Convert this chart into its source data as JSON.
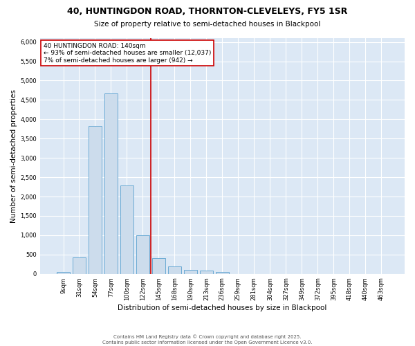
{
  "title": "40, HUNTINGDON ROAD, THORNTON-CLEVELEYS, FY5 1SR",
  "subtitle": "Size of property relative to semi-detached houses in Blackpool",
  "xlabel": "Distribution of semi-detached houses by size in Blackpool",
  "ylabel": "Number of semi-detached properties",
  "footer": "Contains HM Land Registry data © Crown copyright and database right 2025.\nContains public sector information licensed under the Open Government Licence v3.0.",
  "annotation_title": "40 HUNTINGDON ROAD: 140sqm",
  "annotation_line1": "← 93% of semi-detached houses are smaller (12,037)",
  "annotation_line2": "7% of semi-detached houses are larger (942) →",
  "categories": [
    "9sqm",
    "31sqm",
    "54sqm",
    "77sqm",
    "100sqm",
    "122sqm",
    "145sqm",
    "168sqm",
    "190sqm",
    "213sqm",
    "236sqm",
    "259sqm",
    "281sqm",
    "304sqm",
    "327sqm",
    "349sqm",
    "372sqm",
    "395sqm",
    "418sqm",
    "440sqm",
    "463sqm"
  ],
  "values": [
    50,
    430,
    3820,
    4660,
    2280,
    1000,
    400,
    200,
    100,
    80,
    55,
    0,
    0,
    0,
    0,
    0,
    0,
    0,
    0,
    0,
    0
  ],
  "bar_color": "#ccdcec",
  "bar_edge_color": "#6aaad4",
  "vline_color": "#cc0000",
  "vline_x_index": 5.5,
  "box_edge_color": "#cc0000",
  "box_fill_color": "#ffffff",
  "background_color": "#dce8f5",
  "ylim": [
    0,
    6100
  ],
  "yticks": [
    0,
    500,
    1000,
    1500,
    2000,
    2500,
    3000,
    3500,
    4000,
    4500,
    5000,
    5500,
    6000
  ],
  "title_fontsize": 9,
  "subtitle_fontsize": 7.5,
  "xlabel_fontsize": 7.5,
  "ylabel_fontsize": 7.5,
  "tick_fontsize": 6,
  "annotation_fontsize": 6.5,
  "footer_fontsize": 5
}
